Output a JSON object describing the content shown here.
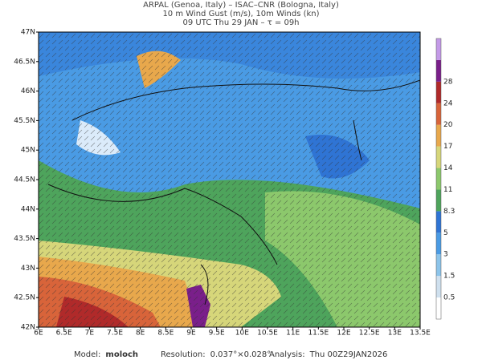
{
  "header": {
    "lines": [
      "ARPAL (Genoa, Italy)  –  ISAC–CNR (Bologna, Italy)",
      "10 m Wind Gust (m/s), 10m Winds (kn)",
      "09 UTC Thu 29 JAN  –  τ = 09h"
    ]
  },
  "map": {
    "lon_labels": [
      "6E",
      "6.5E",
      "7E",
      "7.5E",
      "8E",
      "8.5E",
      "9E",
      "9.5E",
      "10E",
      "10.5E",
      "11E",
      "11.5E",
      "12E",
      "12.5E",
      "13E",
      "13.5E"
    ],
    "lat_labels": [
      "42N",
      "42.5N",
      "43N",
      "43.5N",
      "44N",
      "44.5N",
      "45N",
      "45.5N",
      "46N",
      "46.5N",
      "47N"
    ]
  },
  "colorbar": {
    "labels": [
      "0.5",
      "1.5",
      "3",
      "5",
      "8.3",
      "11",
      "14",
      "17",
      "20",
      "24",
      "28"
    ],
    "colors": [
      "#ffffff",
      "#cfe0ee",
      "#8cc4ea",
      "#4a9be4",
      "#2f74d4",
      "#4ea45c",
      "#8cc86c",
      "#d6d67a",
      "#e8a84c",
      "#d8643a",
      "#b02a2a",
      "#7a1f8a",
      "#c49ae8"
    ]
  },
  "footer": {
    "items": [
      {
        "key": "Model:",
        "value": "moloch"
      },
      {
        "key": "Resolution:",
        "value": "0.037°×0.028°"
      },
      {
        "key": "Analysis:",
        "value": "Thu 00Z29JAN2026"
      }
    ]
  }
}
